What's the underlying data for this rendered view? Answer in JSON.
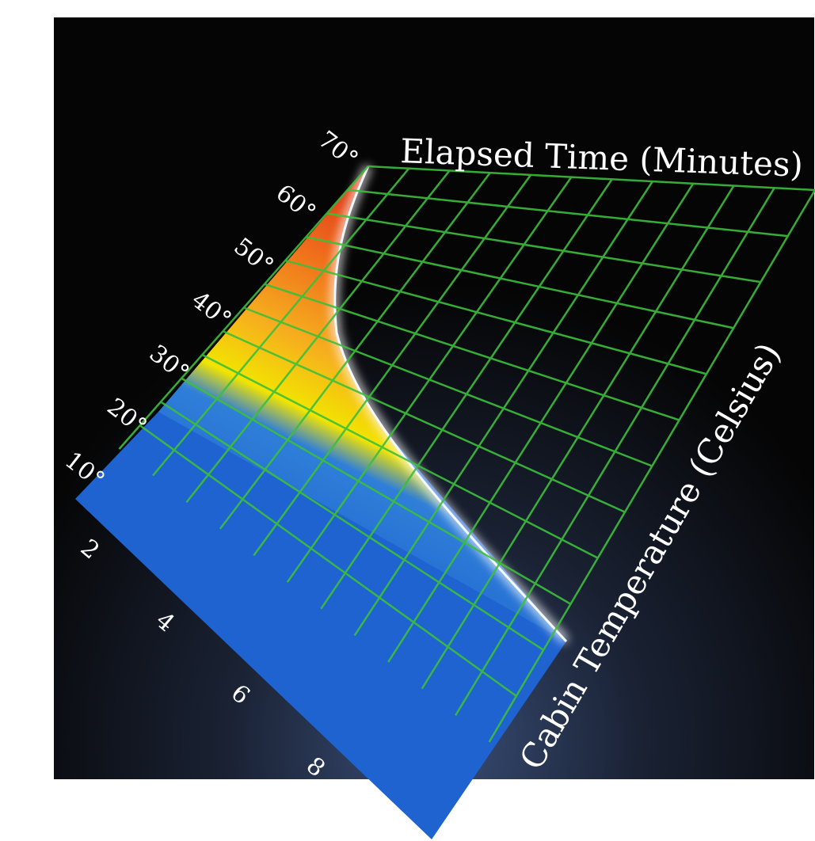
{
  "chart_data": {
    "type": "surface",
    "title": "",
    "x_axis": {
      "label": "Elapsed Time (Minutes)",
      "ticks": [
        "2",
        "4",
        "6",
        "8"
      ]
    },
    "z_axis": {
      "label": "Cabin Temperature (Celsius)",
      "ticks": [
        "10°",
        "20°",
        "30°",
        "40°",
        "50°",
        "60°",
        "70°"
      ]
    },
    "colors": {
      "background": "#000000",
      "grid": "#3cbf3c",
      "cool": "#1a5fcf",
      "warm_low": "#f0e000",
      "warm_mid": "#f4a020",
      "hot": "#e03a14",
      "edge_glow": "#ffffff"
    }
  }
}
